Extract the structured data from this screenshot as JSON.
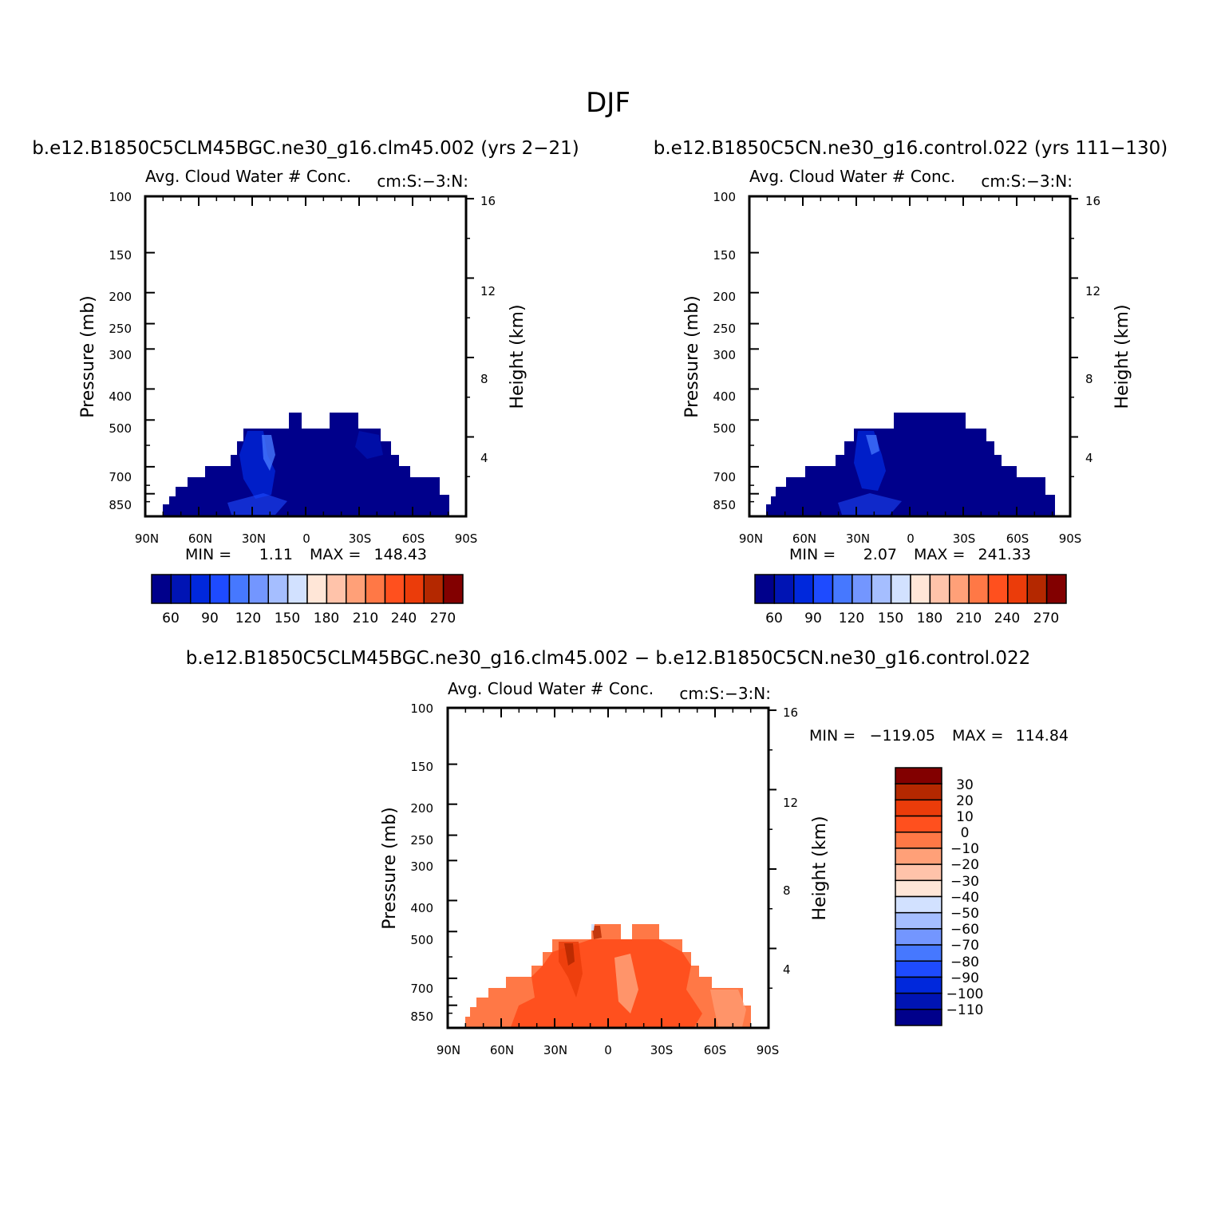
{
  "title": "DJF",
  "colors": {
    "abs_levels_fill": [
      "#00008b",
      "#0014b4",
      "#0028dc",
      "#1e4bff",
      "#4678ff",
      "#7396ff",
      "#a5beff",
      "#d2e1ff",
      "#ffe6d7",
      "#ffc3aa",
      "#ffa078",
      "#ff7846",
      "#ff501e",
      "#eb3c0a",
      "#b42800",
      "#820000"
    ],
    "diff_levels_fill": [
      "#00008b",
      "#0014b4",
      "#0028dc",
      "#1e4bff",
      "#4678ff",
      "#7396ff",
      "#a5beff",
      "#d2e1ff",
      "#ffe6d7",
      "#ffc3aa",
      "#ffa078",
      "#ff7846",
      "#ff501e",
      "#eb3c0a",
      "#b42800",
      "#820000"
    ]
  },
  "panels": [
    {
      "case": "b.e12.B1850C5CLM45BGC.ne30_g16.clm45.002 (yrs 2-21)",
      "left_title": "Avg. Cloud Water # Conc.",
      "right_title": "cm:S:-3:N:",
      "min_label": "MIN =",
      "min_value": "1.11",
      "max_label": "MAX =",
      "max_value": "148.43"
    },
    {
      "case": "b.e12.B1850C5CN.ne30_g16.control.022 (yrs 111-130)",
      "left_title": "Avg. Cloud Water # Conc.",
      "right_title": "cm:S:-3:N:",
      "min_label": "MIN =",
      "min_value": "2.07",
      "max_label": "MAX =",
      "max_value": "241.33"
    },
    {
      "case": "b.e12.B1850C5CLM45BGC.ne30_g16.clm45.002 - b.e12.B1850C5CN.ne30_g16.control.022",
      "left_title": "Avg. Cloud Water # Conc.",
      "right_title": "cm:S:-3:N:",
      "min_label": "MIN =",
      "min_value": "-119.05",
      "max_label": "MAX =",
      "max_value": "114.84"
    }
  ],
  "axes": {
    "ylabel_left": "Pressure (mb)",
    "ylabel_right": "Height (km)",
    "pressure_ticks": [
      "100",
      "150",
      "200",
      "250",
      "300",
      "400",
      "500",
      "700",
      "850"
    ],
    "height_ticks": [
      "16",
      "12",
      "8",
      "4"
    ],
    "lat_ticks": [
      "90N",
      "60N",
      "30N",
      "0",
      "30S",
      "60S",
      "90S"
    ]
  },
  "colorbar_abs": {
    "tick_labels": [
      "60",
      "90",
      "120",
      "150",
      "180",
      "210",
      "240",
      "270"
    ]
  },
  "colorbar_diff": {
    "tick_labels": [
      "30",
      "20",
      "10",
      "0",
      "-10",
      "-20",
      "-30",
      "-40",
      "-50",
      "-60",
      "-70",
      "-80",
      "-90",
      "-100",
      "-110"
    ]
  },
  "chart_data": [
    {
      "type": "heatmap",
      "title": "Avg. Cloud Water # Conc.",
      "subtitle": "b.e12.B1850C5CLM45BGC.ne30_g16.clm45.002 (yrs 2-21)",
      "xlabel": "",
      "ylabel": "Pressure (mb)",
      "ylabel_right": "Height (km)",
      "x_range": [
        "90N",
        "90S"
      ],
      "y_range": [
        1000,
        100
      ],
      "y_scale": "log",
      "dominant_value_range": "< 60",
      "min": 1.11,
      "max": 148.43
    },
    {
      "type": "heatmap",
      "title": "Avg. Cloud Water # Conc.",
      "subtitle": "b.e12.B1850C5CN.ne30_g16.control.022 (yrs 111-130)",
      "xlabel": "",
      "ylabel": "Pressure (mb)",
      "ylabel_right": "Height (km)",
      "x_range": [
        "90N",
        "90S"
      ],
      "y_range": [
        1000,
        100
      ],
      "y_scale": "log",
      "dominant_value_range": "< 60",
      "min": 2.07,
      "max": 241.33
    },
    {
      "type": "heatmap",
      "title": "Avg. Cloud Water # Conc.",
      "subtitle": "b.e12.B1850C5CLM45BGC.ne30_g16.clm45.002 - b.e12.B1850C5CN.ne30_g16.control.022",
      "xlabel": "",
      "ylabel": "Pressure (mb)",
      "ylabel_right": "Height (km)",
      "x_range": [
        "90N",
        "90S"
      ],
      "y_range": [
        1000,
        100
      ],
      "y_scale": "log",
      "dominant_value_range": "0 to 10",
      "min": -119.05,
      "max": 114.84
    }
  ]
}
